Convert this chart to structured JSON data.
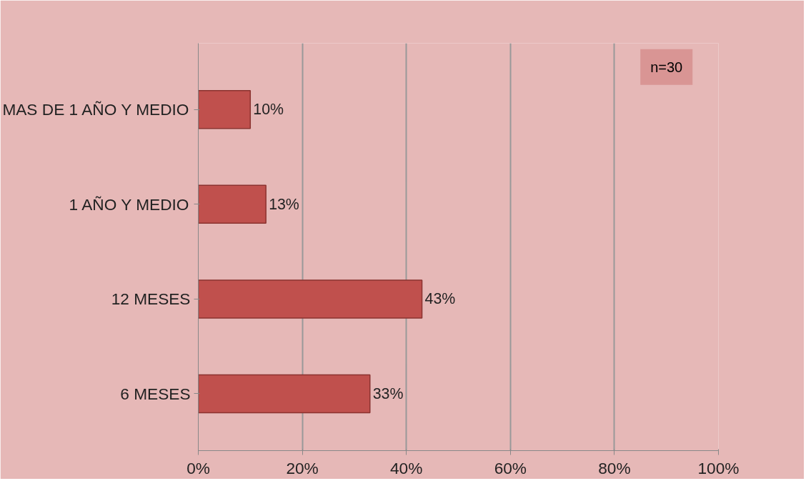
{
  "chart_data": {
    "type": "bar",
    "orientation": "horizontal",
    "categories": [
      "MAS DE 1 AÑO Y MEDIO",
      "1 AÑO Y MEDIO",
      "12 MESES",
      "6 MESES"
    ],
    "values": [
      10,
      13,
      43,
      33
    ],
    "value_labels": [
      "10%",
      "13%",
      "43%",
      "33%"
    ],
    "color": "#c0504d",
    "xlim": [
      0,
      100
    ],
    "xticks": [
      {
        "value": 0,
        "label": "0%"
      },
      {
        "value": 20,
        "label": "20%"
      },
      {
        "value": 40,
        "label": "40%"
      },
      {
        "value": 60,
        "label": "60%"
      },
      {
        "value": 80,
        "label": "80%"
      },
      {
        "value": 100,
        "label": "100%"
      }
    ],
    "grid": "x",
    "annotations": [
      "n=30"
    ]
  }
}
